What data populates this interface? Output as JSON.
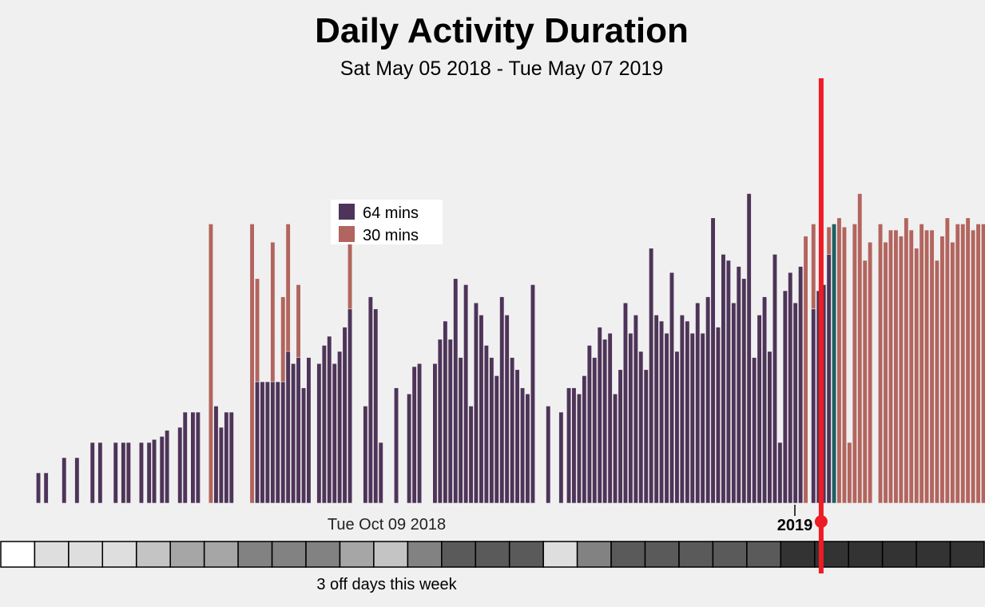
{
  "chart_data": {
    "type": "bar",
    "title": "Daily Activity Duration",
    "subtitle": "Sat May 05 2018 - Tue May 07 2019",
    "x_start": "2018-05-05",
    "x_end": "2019-05-07",
    "ylim": [
      0,
      140
    ],
    "grid": false,
    "legend_placement": "top-left",
    "legend": [
      {
        "label": "64 mins",
        "color": "#4e3458"
      },
      {
        "label": "30 mins",
        "color": "#b2655e"
      }
    ],
    "colors": {
      "primary": "#4e3458",
      "secondary": "#b2655e",
      "highlight": "#1f5f63",
      "cursor": "#ee1c24"
    },
    "axis": {
      "date_label": "Tue Oct 09 2018",
      "year_label": "2019"
    },
    "series": [
      {
        "name": "64 mins",
        "points": [
          [
            "2018-05-05",
            10
          ],
          [
            "2018-05-08",
            10
          ],
          [
            "2018-05-15",
            15
          ],
          [
            "2018-05-20",
            15
          ],
          [
            "2018-05-26",
            20
          ],
          [
            "2018-05-29",
            20
          ],
          [
            "2018-06-04",
            20
          ],
          [
            "2018-06-07",
            20
          ],
          [
            "2018-06-09",
            20
          ],
          [
            "2018-06-14",
            20
          ],
          [
            "2018-06-17",
            20
          ],
          [
            "2018-06-19",
            21
          ],
          [
            "2018-06-22",
            22
          ],
          [
            "2018-06-24",
            24
          ],
          [
            "2018-06-29",
            25
          ],
          [
            "2018-07-01",
            30
          ],
          [
            "2018-07-04",
            30
          ],
          [
            "2018-07-06",
            30
          ],
          [
            "2018-07-13",
            32
          ],
          [
            "2018-07-15",
            25
          ],
          [
            "2018-07-17",
            30
          ],
          [
            "2018-07-19",
            30
          ],
          [
            "2018-07-29",
            40
          ],
          [
            "2018-07-31",
            40
          ],
          [
            "2018-08-02",
            40
          ],
          [
            "2018-08-04",
            40
          ],
          [
            "2018-08-06",
            40
          ],
          [
            "2018-08-08",
            40
          ],
          [
            "2018-08-10",
            50
          ],
          [
            "2018-08-12",
            46
          ],
          [
            "2018-08-14",
            48
          ],
          [
            "2018-08-16",
            38
          ],
          [
            "2018-08-18",
            48
          ],
          [
            "2018-08-22",
            46
          ],
          [
            "2018-08-24",
            52
          ],
          [
            "2018-08-26",
            55
          ],
          [
            "2018-08-28",
            46
          ],
          [
            "2018-08-30",
            50
          ],
          [
            "2018-09-01",
            58
          ],
          [
            "2018-09-03",
            64
          ],
          [
            "2018-09-09",
            32
          ],
          [
            "2018-09-11",
            68
          ],
          [
            "2018-09-13",
            64
          ],
          [
            "2018-09-15",
            20
          ],
          [
            "2018-09-21",
            38
          ],
          [
            "2018-09-26",
            36
          ],
          [
            "2018-09-28",
            45
          ],
          [
            "2018-09-30",
            46
          ],
          [
            "2018-10-06",
            46
          ],
          [
            "2018-10-08",
            54
          ],
          [
            "2018-10-10",
            60
          ],
          [
            "2018-10-12",
            54
          ],
          [
            "2018-10-14",
            74
          ],
          [
            "2018-10-16",
            48
          ],
          [
            "2018-10-18",
            72
          ],
          [
            "2018-10-20",
            32
          ],
          [
            "2018-10-22",
            66
          ],
          [
            "2018-10-24",
            62
          ],
          [
            "2018-10-26",
            52
          ],
          [
            "2018-10-28",
            48
          ],
          [
            "2018-10-30",
            42
          ],
          [
            "2018-11-01",
            68
          ],
          [
            "2018-11-03",
            62
          ],
          [
            "2018-11-05",
            48
          ],
          [
            "2018-11-07",
            44
          ],
          [
            "2018-11-09",
            38
          ],
          [
            "2018-11-11",
            36
          ],
          [
            "2018-11-13",
            72
          ],
          [
            "2018-11-19",
            32
          ],
          [
            "2018-11-24",
            30
          ],
          [
            "2018-11-27",
            38
          ],
          [
            "2018-11-29",
            38
          ],
          [
            "2018-12-01",
            36
          ],
          [
            "2018-12-03",
            42
          ],
          [
            "2018-12-05",
            52
          ],
          [
            "2018-12-07",
            48
          ],
          [
            "2018-12-09",
            58
          ],
          [
            "2018-12-11",
            54
          ],
          [
            "2018-12-13",
            56
          ],
          [
            "2018-12-15",
            36
          ],
          [
            "2018-12-17",
            44
          ],
          [
            "2018-12-19",
            66
          ],
          [
            "2018-12-21",
            56
          ],
          [
            "2018-12-23",
            62
          ],
          [
            "2018-12-25",
            50
          ],
          [
            "2018-12-27",
            44
          ],
          [
            "2018-12-29",
            84
          ],
          [
            "2018-12-31",
            62
          ],
          [
            "2019-01-02",
            60
          ],
          [
            "2019-01-04",
            56
          ],
          [
            "2019-01-06",
            76
          ],
          [
            "2019-01-08",
            50
          ],
          [
            "2019-01-10",
            62
          ],
          [
            "2019-01-12",
            60
          ],
          [
            "2019-01-14",
            56
          ],
          [
            "2019-01-16",
            66
          ],
          [
            "2019-01-18",
            56
          ],
          [
            "2019-01-20",
            68
          ],
          [
            "2019-01-22",
            94
          ],
          [
            "2019-01-24",
            58
          ],
          [
            "2019-01-26",
            82
          ],
          [
            "2019-01-28",
            80
          ],
          [
            "2019-01-30",
            66
          ],
          [
            "2019-02-01",
            78
          ],
          [
            "2019-02-03",
            74
          ],
          [
            "2019-02-05",
            102
          ],
          [
            "2019-02-07",
            48
          ],
          [
            "2019-02-09",
            62
          ],
          [
            "2019-02-11",
            68
          ],
          [
            "2019-02-13",
            50
          ],
          [
            "2019-02-15",
            82
          ],
          [
            "2019-02-17",
            20
          ],
          [
            "2019-02-19",
            70
          ],
          [
            "2019-02-21",
            76
          ],
          [
            "2019-02-23",
            66
          ],
          [
            "2019-02-25",
            78
          ],
          [
            "2019-03-02",
            64
          ],
          [
            "2019-03-04",
            70
          ],
          [
            "2019-03-06",
            72
          ],
          [
            "2019-03-08",
            82
          ]
        ]
      },
      {
        "name": "30 mins",
        "points": [
          [
            "2018-07-11",
            92
          ],
          [
            "2018-07-27",
            92
          ],
          [
            "2018-07-29",
            74
          ],
          [
            "2018-08-04",
            86
          ],
          [
            "2018-08-08",
            68
          ],
          [
            "2018-08-10",
            92
          ],
          [
            "2018-08-14",
            72
          ],
          [
            "2018-09-03",
            92
          ],
          [
            "2018-09-13",
            32
          ],
          [
            "2019-02-25",
            76
          ],
          [
            "2019-02-27",
            66
          ],
          [
            "2019-02-27",
            88
          ],
          [
            "2019-03-02",
            92
          ],
          [
            "2019-03-08",
            91
          ],
          [
            "2019-03-12",
            94
          ],
          [
            "2019-03-14",
            91
          ],
          [
            "2019-03-16",
            20
          ],
          [
            "2019-03-18",
            92
          ],
          [
            "2019-03-20",
            102
          ],
          [
            "2019-03-22",
            80
          ],
          [
            "2019-03-24",
            86
          ],
          [
            "2019-03-28",
            92
          ],
          [
            "2019-03-30",
            86
          ],
          [
            "2019-04-01",
            90
          ],
          [
            "2019-04-03",
            90
          ],
          [
            "2019-04-05",
            88
          ],
          [
            "2019-04-07",
            94
          ],
          [
            "2019-04-09",
            90
          ],
          [
            "2019-04-11",
            84
          ],
          [
            "2019-04-13",
            92
          ],
          [
            "2019-04-15",
            90
          ],
          [
            "2019-04-17",
            90
          ],
          [
            "2019-04-19",
            80
          ],
          [
            "2019-04-21",
            88
          ],
          [
            "2019-04-23",
            94
          ],
          [
            "2019-04-25",
            86
          ],
          [
            "2019-04-27",
            92
          ],
          [
            "2019-04-29",
            92
          ],
          [
            "2019-05-01",
            94
          ],
          [
            "2019-05-03",
            90
          ],
          [
            "2019-05-05",
            92
          ],
          [
            "2019-05-07",
            92
          ]
        ]
      },
      {
        "points": [
          [
            "2019-03-10",
            92
          ]
        ]
      }
    ],
    "cursor_date": "2019-03-05",
    "weekly_off_days": [
      0,
      2,
      2,
      2,
      3,
      4,
      4,
      5,
      5,
      5,
      4,
      3,
      5,
      6,
      6,
      6,
      2,
      5,
      6,
      6,
      6,
      6,
      6,
      7,
      7,
      7,
      7,
      7,
      7
    ],
    "week_annotation": "3 off days this week"
  }
}
